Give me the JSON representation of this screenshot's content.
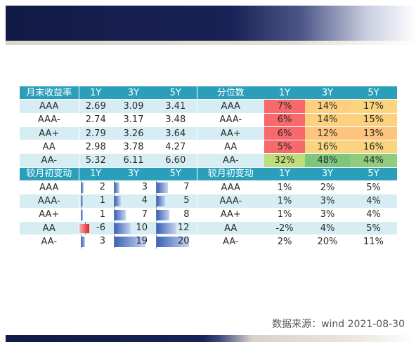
{
  "yield_table": {
    "headers": [
      "月末收益率",
      "1Y",
      "3Y",
      "5Y",
      "分位数",
      "1Y",
      "3Y",
      "5Y"
    ],
    "rows": [
      {
        "rating": "AAA",
        "y1": "2.69",
        "y3": "3.09",
        "y5": "3.41",
        "rating2": "AAA",
        "p1": "7%",
        "p3": "14%",
        "p5": "17%"
      },
      {
        "rating": "AAA-",
        "y1": "2.74",
        "y3": "3.17",
        "y5": "3.48",
        "rating2": "AAA-",
        "p1": "6%",
        "p3": "14%",
        "p5": "15%"
      },
      {
        "rating": "AA+",
        "y1": "2.79",
        "y3": "3.26",
        "y5": "3.64",
        "rating2": "AA+",
        "p1": "6%",
        "p3": "12%",
        "p5": "13%"
      },
      {
        "rating": "AA",
        "y1": "2.98",
        "y3": "3.78",
        "y5": "4.27",
        "rating2": "AA",
        "p1": "5%",
        "p3": "16%",
        "p5": "16%"
      },
      {
        "rating": "AA-",
        "y1": "5.32",
        "y3": "6.11",
        "y5": "6.60",
        "rating2": "AA-",
        "p1": "32%",
        "p3": "48%",
        "p5": "44%"
      }
    ],
    "percentile_colors": [
      [
        "#f8696b",
        "#fcd07f",
        "#fbd47f"
      ],
      [
        "#f8696b",
        "#fcd07f",
        "#fcd07f"
      ],
      [
        "#f8696b",
        "#fcc47d",
        "#fcc47d"
      ],
      [
        "#f8696b",
        "#fbd47f",
        "#fbd47f"
      ],
      [
        "#bfdd7b",
        "#7cc67e",
        "#8fcc7e"
      ]
    ]
  },
  "change_table": {
    "headers": [
      "较月初变动",
      "1Y",
      "3Y",
      "5Y",
      "较月初变动",
      "1Y",
      "3Y",
      "5Y"
    ],
    "bar_max": 20,
    "rows": [
      {
        "rating": "AAA",
        "c1": 2,
        "c3": 3,
        "c5": 7,
        "rating2": "AAA",
        "r1": "1%",
        "r3": "2%",
        "r5": "5%"
      },
      {
        "rating": "AAA-",
        "c1": 1,
        "c3": 4,
        "c5": 5,
        "rating2": "AAA-",
        "r1": "1%",
        "r3": "3%",
        "r5": "4%"
      },
      {
        "rating": "AA+",
        "c1": 1,
        "c3": 7,
        "c5": 8,
        "rating2": "AA+",
        "r1": "1%",
        "r3": "3%",
        "r5": "4%"
      },
      {
        "rating": "AA",
        "c1": -6,
        "c3": 10,
        "c5": 12,
        "rating2": "AA",
        "r1": "-2%",
        "r3": "4%",
        "r5": "5%"
      },
      {
        "rating": "AA-",
        "c1": 3,
        "c3": 19,
        "c5": 20,
        "rating2": "AA-",
        "r1": "2%",
        "r3": "20%",
        "r5": "11%"
      }
    ]
  },
  "colors": {
    "header_bg": "#2b9fba",
    "band_blue": "#d6edf3",
    "banner_navy": "#182256",
    "bar_positive": "#3b63b8",
    "bar_negative": "#e01f1f"
  },
  "footer": {
    "source": "数据来源：wind 2021-08-30"
  }
}
